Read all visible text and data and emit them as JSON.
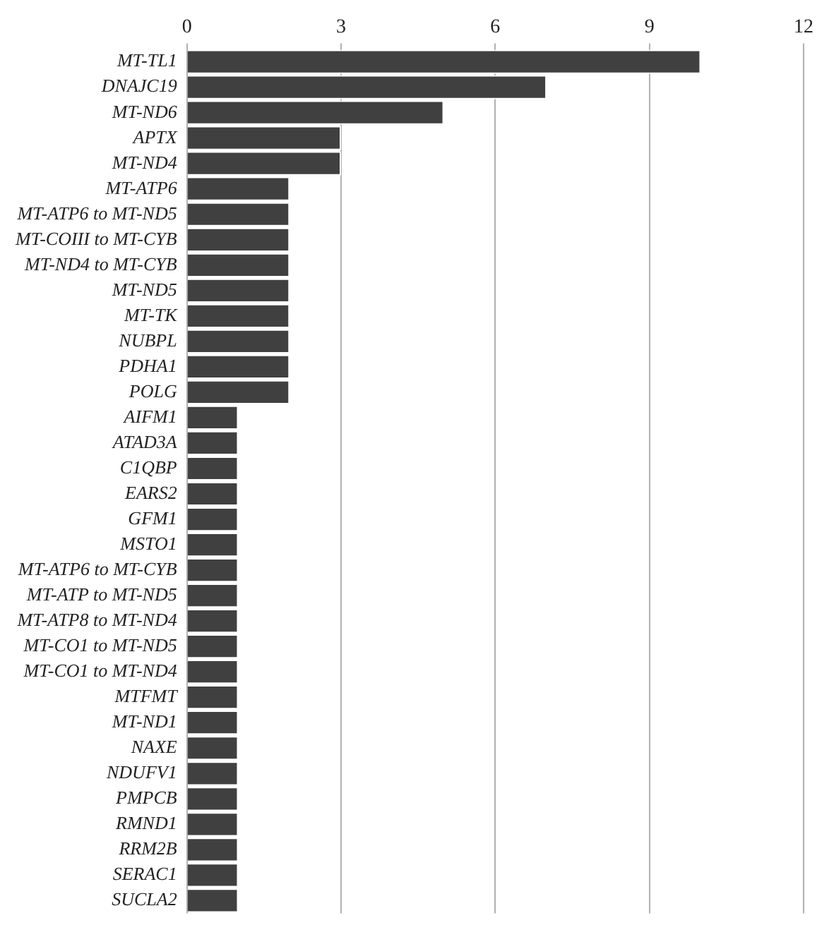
{
  "chart_data": {
    "type": "bar",
    "orientation": "horizontal",
    "categories": [
      "MT-TL1",
      "DNAJC19",
      "MT-ND6",
      "APTX",
      "MT-ND4",
      "MT-ATP6",
      "MT-ATP6 to MT-ND5",
      "MT-COIII to MT-CYB",
      "MT-ND4 to MT-CYB",
      "MT-ND5",
      "MT-TK",
      "NUBPL",
      "PDHA1",
      "POLG",
      "AIFM1",
      "ATAD3A",
      "C1QBP",
      "EARS2",
      "GFM1",
      "MSTO1",
      "MT-ATP6 to MT-CYB",
      "MT-ATP to MT-ND5",
      "MT-ATP8 to MT-ND4",
      "MT-CO1 to MT-ND5",
      "MT-CO1 to MT-ND4",
      "MTFMT",
      "MT-ND1",
      "NAXE",
      "NDUFV1",
      "PMPCB",
      "RMND1",
      "RRM2B",
      "SERAC1",
      "SUCLA2"
    ],
    "values": [
      10,
      7,
      5,
      3,
      3,
      2,
      2,
      2,
      2,
      2,
      2,
      2,
      2,
      2,
      1,
      1,
      1,
      1,
      1,
      1,
      1,
      1,
      1,
      1,
      1,
      1,
      1,
      1,
      1,
      1,
      1,
      1,
      1,
      1
    ],
    "color": "#404040",
    "xlim": [
      0,
      12
    ],
    "xticks": [
      0,
      3,
      6,
      9,
      12
    ],
    "grid": "x"
  }
}
